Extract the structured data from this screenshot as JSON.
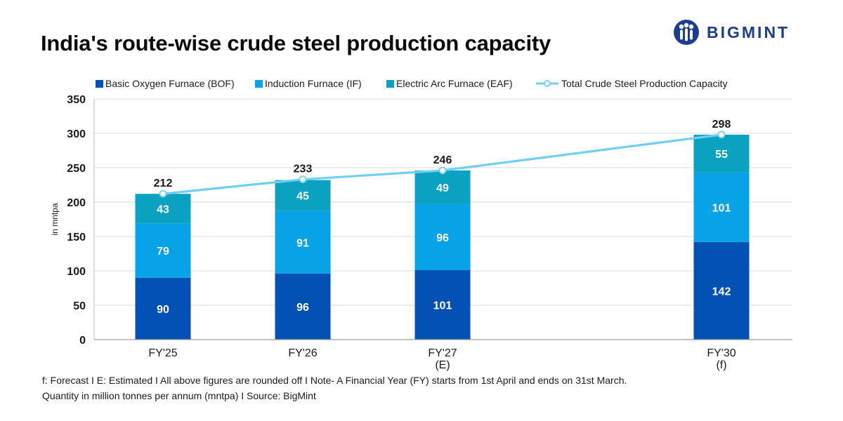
{
  "header": {
    "title": "India's route-wise crude steel production capacity",
    "brand": "BIGMINT"
  },
  "footnotes": {
    "line1": "f: Forecast  I  E: Estimated  I  All above figures are rounded off  I  Note- A Financial Year (FY) starts from 1st April and ends on 31st March.",
    "line2": "Quantity in million tonnes per annum (mntpa)  I  Source: BigMint"
  },
  "colors": {
    "bof": "#0351b5",
    "if": "#08a2e6",
    "eaf": "#0aa2c0",
    "total_line": "#6fd0f2",
    "brand": "#1c3e8f"
  },
  "chart_data": {
    "type": "bar",
    "stacked": true,
    "title": "India's route-wise crude steel production capacity",
    "ylabel": "in mntpa",
    "xlabel": "",
    "ylim": [
      0,
      350
    ],
    "yticks": [
      0,
      50,
      100,
      150,
      200,
      250,
      300,
      350
    ],
    "grid": true,
    "legend_position": "top",
    "categories": [
      [
        "FY'25"
      ],
      [
        "FY'26"
      ],
      [
        "FY'27",
        "(E)"
      ],
      [
        "FY'30",
        "(f)"
      ]
    ],
    "series": [
      {
        "name": "Basic Oxygen Furnace (BOF)",
        "key": "bof",
        "values": [
          90,
          96,
          101,
          142
        ]
      },
      {
        "name": "Induction Furnace (IF)",
        "key": "if",
        "values": [
          79,
          91,
          96,
          101
        ]
      },
      {
        "name": "Electric Arc Furnace (EAF)",
        "key": "eaf",
        "values": [
          43,
          45,
          49,
          55
        ]
      }
    ],
    "line_series": {
      "name": "Total Crude Steel Production Capacity",
      "values": [
        212,
        233,
        246,
        298
      ]
    }
  }
}
